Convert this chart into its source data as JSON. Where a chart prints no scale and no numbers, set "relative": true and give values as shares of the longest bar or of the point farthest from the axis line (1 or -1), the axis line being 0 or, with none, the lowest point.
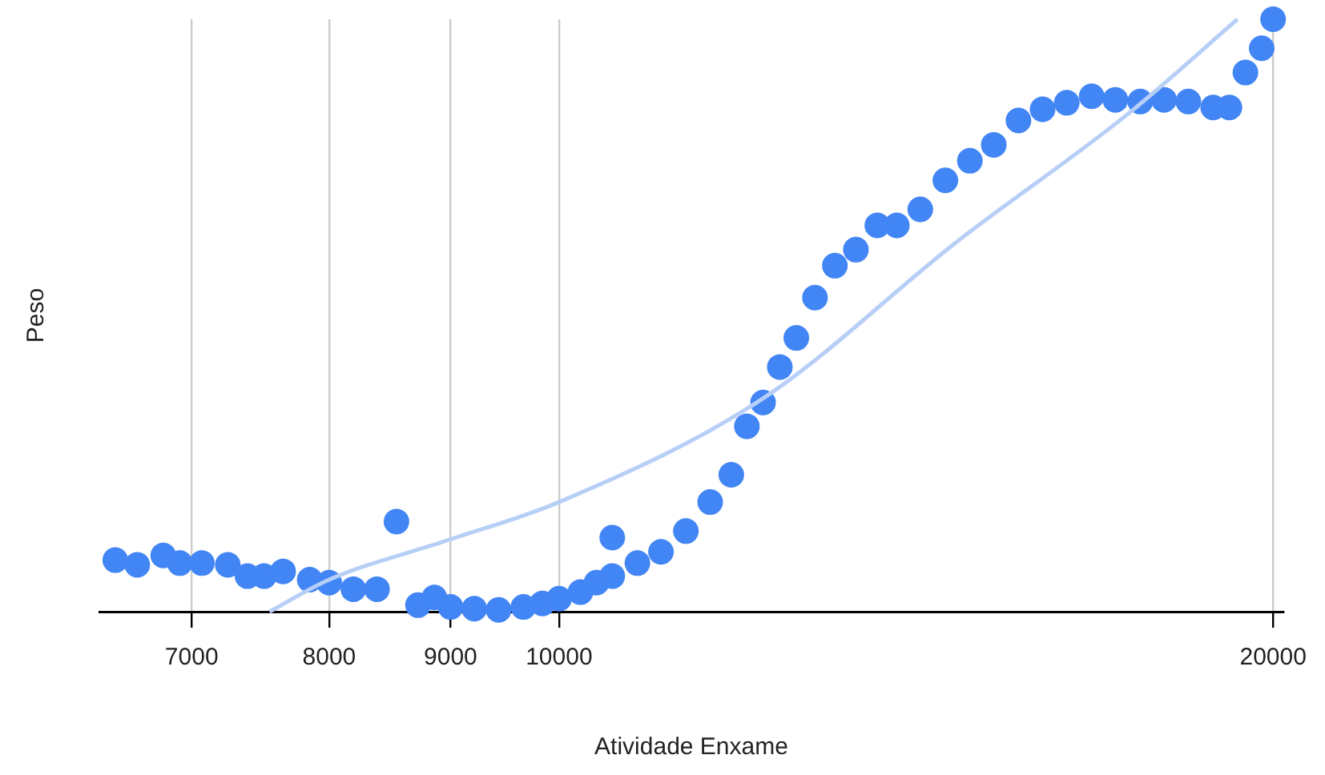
{
  "chart_data": {
    "type": "scatter",
    "xlabel": "Atividade Enxame",
    "ylabel": "Peso",
    "log": "x",
    "xlim": [
      6400,
      20200
    ],
    "xticks": [
      7000,
      8000,
      9000,
      10000,
      20000
    ],
    "grid": "x",
    "relative": true,
    "marker": "circle",
    "legend": false,
    "series": [
      {
        "color": "#4285f4",
        "x": [
          6500,
          6640,
          6810,
          6920,
          7070,
          7250,
          7390,
          7510,
          7650,
          7850,
          8000,
          8190,
          8380,
          8540,
          8720,
          8860,
          9000,
          9210,
          9430,
          9660,
          9840,
          10000,
          10210,
          10370,
          10530,
          10530,
          10790,
          11040,
          11310,
          11580,
          11820,
          12000,
          12190,
          12390,
          12590,
          12820,
          13070,
          13340,
          13620,
          13880,
          14200,
          14550,
          14900,
          15250,
          15620,
          15990,
          16370,
          16770,
          17160,
          17580,
          17990,
          18420,
          18870,
          19170,
          19470,
          19780,
          20000
        ],
        "values": [
          0.087,
          0.079,
          0.095,
          0.082,
          0.082,
          0.079,
          0.06,
          0.06,
          0.068,
          0.054,
          0.049,
          0.038,
          0.038,
          0.152,
          0.011,
          0.024,
          0.008,
          0.005,
          0.003,
          0.008,
          0.014,
          0.022,
          0.033,
          0.049,
          0.125,
          0.06,
          0.082,
          0.101,
          0.136,
          0.185,
          0.231,
          0.313,
          0.353,
          0.413,
          0.462,
          0.53,
          0.584,
          0.611,
          0.652,
          0.652,
          0.679,
          0.728,
          0.761,
          0.788,
          0.829,
          0.848,
          0.859,
          0.87,
          0.864,
          0.861,
          0.864,
          0.861,
          0.851,
          0.851,
          0.91,
          0.951,
          1.0
        ]
      },
      {
        "type": "line",
        "color": "#b7cff7",
        "line_style": "solid",
        "marker": "none",
        "x": [
          7550,
          8000,
          9000,
          10000,
          12190,
          14720,
          17370,
          19320
        ],
        "values": [
          0,
          0.054,
          0.122,
          0.185,
          0.36,
          0.625,
          0.84,
          1.0
        ]
      }
    ]
  }
}
